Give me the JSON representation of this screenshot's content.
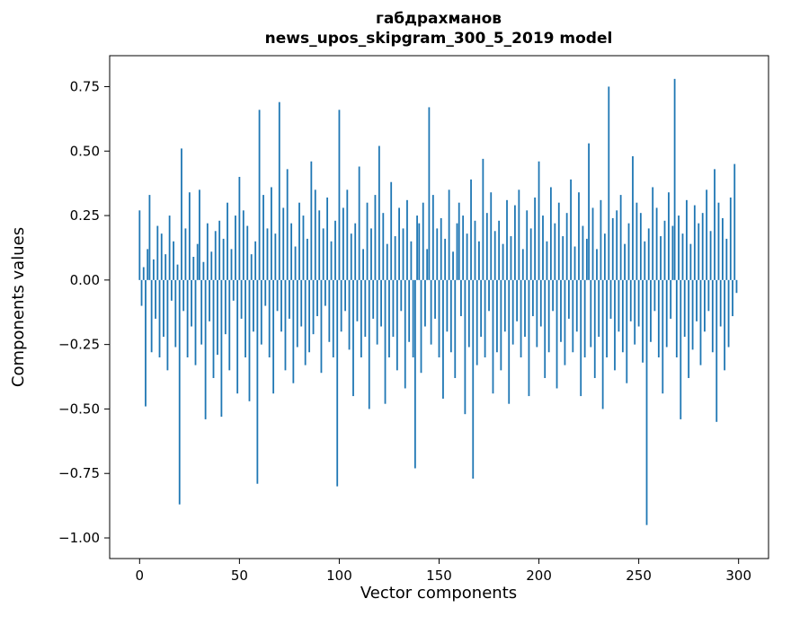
{
  "chart_data": {
    "type": "bar",
    "title_line1": "габдрахманов",
    "title_line2": "news_upos_skipgram_300_5_2019 model",
    "xlabel": "Vector components",
    "ylabel": "Components values",
    "xlim": [
      -15,
      315
    ],
    "ylim": [
      -1.08,
      0.87
    ],
    "x_ticks": [
      0,
      50,
      100,
      150,
      200,
      250,
      300
    ],
    "x_tick_labels": [
      "0",
      "50",
      "100",
      "150",
      "200",
      "250",
      "300"
    ],
    "y_ticks": [
      0.75,
      0.5,
      0.25,
      0.0,
      -0.25,
      -0.5,
      -0.75,
      -1.0
    ],
    "y_tick_labels": [
      "0.75",
      "0.50",
      "0.25",
      "0.00",
      "−0.25",
      "−0.50",
      "−0.75",
      "−1.00"
    ],
    "grid": false,
    "legend": null,
    "bar_color": "#1f77b4",
    "values": [
      0.27,
      -0.1,
      0.05,
      -0.49,
      0.12,
      0.33,
      -0.28,
      0.08,
      -0.15,
      0.21,
      -0.3,
      0.18,
      -0.22,
      0.1,
      -0.35,
      0.25,
      -0.08,
      0.15,
      -0.26,
      0.06,
      -0.87,
      0.51,
      -0.12,
      0.2,
      -0.3,
      0.34,
      -0.18,
      0.09,
      -0.33,
      0.14,
      0.35,
      -0.25,
      0.07,
      -0.54,
      0.22,
      -0.16,
      0.11,
      -0.38,
      0.19,
      -0.29,
      0.23,
      -0.53,
      0.16,
      -0.21,
      0.3,
      -0.35,
      0.12,
      -0.08,
      0.25,
      -0.44,
      0.4,
      -0.15,
      0.27,
      -0.3,
      0.21,
      -0.47,
      0.1,
      -0.2,
      0.15,
      -0.79,
      0.66,
      -0.25,
      0.33,
      -0.1,
      0.2,
      -0.3,
      0.36,
      -0.44,
      0.18,
      -0.12,
      0.69,
      -0.2,
      0.28,
      -0.35,
      0.43,
      -0.15,
      0.22,
      -0.4,
      0.13,
      -0.26,
      0.3,
      -0.18,
      0.25,
      -0.33,
      0.16,
      -0.28,
      0.46,
      -0.21,
      0.35,
      -0.14,
      0.27,
      -0.36,
      0.2,
      -0.1,
      0.32,
      -0.24,
      0.15,
      -0.3,
      0.23,
      -0.8,
      0.66,
      -0.2,
      0.28,
      -0.12,
      0.35,
      -0.27,
      0.18,
      -0.45,
      0.22,
      -0.16,
      0.44,
      -0.3,
      0.12,
      -0.22,
      0.3,
      -0.5,
      0.2,
      -0.15,
      0.33,
      -0.25,
      0.52,
      -0.18,
      0.26,
      -0.48,
      0.14,
      -0.3,
      0.38,
      -0.22,
      0.17,
      -0.35,
      0.28,
      -0.12,
      0.2,
      -0.42,
      0.31,
      -0.24,
      0.15,
      -0.3,
      -0.73,
      0.25,
      0.22,
      -0.36,
      0.3,
      -0.18,
      0.12,
      0.67,
      -0.25,
      0.33,
      -0.15,
      0.2,
      -0.3,
      0.24,
      -0.46,
      0.16,
      -0.2,
      0.35,
      -0.28,
      0.11,
      -0.38,
      0.22,
      0.3,
      -0.14,
      0.25,
      -0.52,
      0.18,
      -0.26,
      0.39,
      -0.77,
      0.23,
      -0.33,
      0.15,
      -0.22,
      0.47,
      -0.3,
      0.26,
      -0.12,
      0.34,
      -0.44,
      0.19,
      -0.28,
      0.23,
      -0.35,
      0.14,
      -0.2,
      0.31,
      -0.48,
      0.17,
      -0.25,
      0.29,
      -0.16,
      0.35,
      -0.3,
      0.12,
      -0.22,
      0.27,
      -0.45,
      0.2,
      -0.14,
      0.32,
      -0.26,
      0.46,
      -0.18,
      0.25,
      -0.38,
      0.15,
      -0.28,
      0.36,
      -0.12,
      0.22,
      -0.42,
      0.3,
      -0.24,
      0.17,
      -0.33,
      0.26,
      -0.15,
      0.39,
      -0.28,
      0.13,
      -0.2,
      0.34,
      -0.45,
      0.21,
      -0.3,
      0.16,
      0.53,
      -0.26,
      0.28,
      -0.38,
      0.12,
      -0.22,
      0.31,
      -0.5,
      0.18,
      -0.3,
      0.75,
      -0.15,
      0.24,
      -0.35,
      0.27,
      -0.2,
      0.33,
      -0.28,
      0.14,
      -0.4,
      0.22,
      -0.16,
      0.48,
      -0.25,
      0.3,
      -0.18,
      0.26,
      -0.32,
      0.15,
      -0.95,
      0.2,
      -0.24,
      0.36,
      -0.12,
      0.28,
      -0.3,
      0.17,
      -0.44,
      0.23,
      -0.26,
      0.34,
      -0.15,
      0.21,
      0.78,
      -0.3,
      0.25,
      -0.54,
      0.18,
      -0.22,
      0.31,
      -0.38,
      0.14,
      -0.27,
      0.29,
      -0.16,
      0.22,
      -0.33,
      0.26,
      -0.2,
      0.35,
      -0.12,
      0.19,
      -0.28,
      0.43,
      -0.55,
      0.3,
      -0.18,
      0.24,
      -0.35,
      0.16,
      -0.26,
      0.32,
      -0.14,
      0.45,
      -0.05
    ]
  }
}
